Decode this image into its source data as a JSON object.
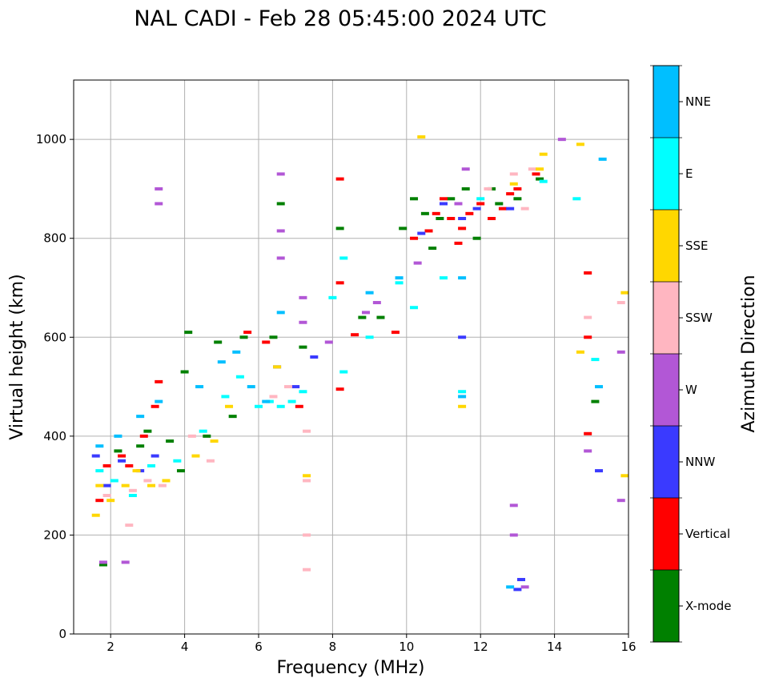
{
  "chart_data": {
    "type": "scatter",
    "title": "NAL CADI - Feb 28 05:45:00 2024 UTC",
    "xlabel": "Frequency (MHz)",
    "ylabel": "Virtual height (km)",
    "xlim": [
      1,
      16
    ],
    "ylim": [
      0,
      1120
    ],
    "xticks": [
      2,
      4,
      6,
      8,
      10,
      12,
      14,
      16
    ],
    "yticks": [
      0,
      200,
      400,
      600,
      800,
      1000
    ],
    "grid": true,
    "colorbar": {
      "label": "Azimuth Direction",
      "placement": "right",
      "categories": [
        {
          "name": "X-mode",
          "color": "#008000"
        },
        {
          "name": "Vertical",
          "color": "#ff0000"
        },
        {
          "name": "NNW",
          "color": "#3a3aff"
        },
        {
          "name": "W",
          "color": "#b257d6"
        },
        {
          "name": "SSW",
          "color": "#ffb6c1"
        },
        {
          "name": "SSE",
          "color": "#ffd700"
        },
        {
          "name": "E",
          "color": "#00ffff"
        },
        {
          "name": "NNE",
          "color": "#00bfff"
        }
      ]
    },
    "series": [
      {
        "name": "X-mode",
        "points": [
          [
            1.8,
            140
          ],
          [
            2.2,
            370
          ],
          [
            2.8,
            380
          ],
          [
            3.0,
            410
          ],
          [
            3.6,
            390
          ],
          [
            3.9,
            330
          ],
          [
            4.0,
            530
          ],
          [
            4.1,
            610
          ],
          [
            4.6,
            400
          ],
          [
            4.9,
            590
          ],
          [
            5.3,
            440
          ],
          [
            5.6,
            600
          ],
          [
            6.4,
            600
          ],
          [
            6.6,
            870
          ],
          [
            7.2,
            580
          ],
          [
            8.2,
            820
          ],
          [
            8.8,
            640
          ],
          [
            9.3,
            640
          ],
          [
            9.9,
            820
          ],
          [
            10.2,
            880
          ],
          [
            10.5,
            850
          ],
          [
            10.7,
            780
          ],
          [
            10.9,
            840
          ],
          [
            11.2,
            880
          ],
          [
            11.6,
            900
          ],
          [
            11.9,
            800
          ],
          [
            12.3,
            900
          ],
          [
            12.5,
            870
          ],
          [
            13.0,
            880
          ],
          [
            13.6,
            920
          ],
          [
            15.1,
            470
          ]
        ]
      },
      {
        "name": "Vertical",
        "points": [
          [
            1.7,
            270
          ],
          [
            1.9,
            340
          ],
          [
            2.3,
            360
          ],
          [
            2.5,
            340
          ],
          [
            2.9,
            400
          ],
          [
            3.2,
            460
          ],
          [
            3.3,
            510
          ],
          [
            5.7,
            610
          ],
          [
            6.2,
            590
          ],
          [
            7.1,
            460
          ],
          [
            8.2,
            495
          ],
          [
            8.2,
            710
          ],
          [
            8.2,
            920
          ],
          [
            8.6,
            605
          ],
          [
            9.7,
            610
          ],
          [
            10.2,
            800
          ],
          [
            10.6,
            815
          ],
          [
            10.8,
            850
          ],
          [
            11.0,
            880
          ],
          [
            11.2,
            840
          ],
          [
            11.4,
            790
          ],
          [
            11.5,
            820
          ],
          [
            11.7,
            850
          ],
          [
            12.0,
            870
          ],
          [
            12.3,
            840
          ],
          [
            12.6,
            860
          ],
          [
            12.8,
            890
          ],
          [
            13.0,
            900
          ],
          [
            13.5,
            930
          ],
          [
            14.9,
            730
          ],
          [
            14.9,
            600
          ],
          [
            14.9,
            405
          ]
        ]
      },
      {
        "name": "NNW",
        "points": [
          [
            1.6,
            360
          ],
          [
            1.9,
            300
          ],
          [
            2.3,
            350
          ],
          [
            2.8,
            330
          ],
          [
            3.2,
            360
          ],
          [
            6.5,
            540
          ],
          [
            7.0,
            500
          ],
          [
            7.5,
            560
          ],
          [
            10.4,
            810
          ],
          [
            11.0,
            870
          ],
          [
            11.5,
            600
          ],
          [
            11.5,
            840
          ],
          [
            11.9,
            860
          ],
          [
            12.8,
            860
          ],
          [
            13.0,
            90
          ],
          [
            13.1,
            110
          ],
          [
            15.2,
            330
          ]
        ]
      },
      {
        "name": "W",
        "points": [
          [
            1.8,
            145
          ],
          [
            2.4,
            145
          ],
          [
            3.3,
            870
          ],
          [
            3.3,
            900
          ],
          [
            6.6,
            760
          ],
          [
            6.6,
            815
          ],
          [
            6.6,
            930
          ],
          [
            7.2,
            630
          ],
          [
            7.2,
            680
          ],
          [
            7.9,
            590
          ],
          [
            8.9,
            650
          ],
          [
            9.2,
            670
          ],
          [
            10.3,
            750
          ],
          [
            11.4,
            870
          ],
          [
            11.6,
            940
          ],
          [
            12.9,
            200
          ],
          [
            12.9,
            260
          ],
          [
            13.2,
            95
          ],
          [
            14.2,
            1000
          ],
          [
            14.9,
            370
          ],
          [
            15.8,
            270
          ],
          [
            15.8,
            570
          ]
        ]
      },
      {
        "name": "SSW",
        "points": [
          [
            1.9,
            280
          ],
          [
            2.5,
            220
          ],
          [
            2.6,
            290
          ],
          [
            3.0,
            310
          ],
          [
            3.4,
            300
          ],
          [
            4.2,
            400
          ],
          [
            4.7,
            350
          ],
          [
            6.4,
            480
          ],
          [
            6.8,
            500
          ],
          [
            7.3,
            130
          ],
          [
            7.3,
            200
          ],
          [
            7.3,
            410
          ],
          [
            7.3,
            310
          ],
          [
            12.2,
            900
          ],
          [
            12.9,
            930
          ],
          [
            13.2,
            860
          ],
          [
            13.4,
            940
          ],
          [
            14.9,
            640
          ],
          [
            15.8,
            670
          ]
        ]
      },
      {
        "name": "SSE",
        "points": [
          [
            1.6,
            240
          ],
          [
            1.7,
            300
          ],
          [
            2.0,
            270
          ],
          [
            2.4,
            300
          ],
          [
            2.7,
            330
          ],
          [
            3.1,
            300
          ],
          [
            3.5,
            310
          ],
          [
            4.3,
            360
          ],
          [
            4.8,
            390
          ],
          [
            5.2,
            460
          ],
          [
            6.5,
            540
          ],
          [
            7.3,
            320
          ],
          [
            10.4,
            1005
          ],
          [
            11.5,
            460
          ],
          [
            12.9,
            910
          ],
          [
            13.6,
            940
          ],
          [
            13.7,
            970
          ],
          [
            14.7,
            570
          ],
          [
            14.7,
            990
          ],
          [
            15.9,
            320
          ],
          [
            15.9,
            690
          ]
        ]
      },
      {
        "name": "E",
        "points": [
          [
            1.7,
            330
          ],
          [
            2.1,
            310
          ],
          [
            2.6,
            280
          ],
          [
            3.1,
            340
          ],
          [
            3.8,
            350
          ],
          [
            4.5,
            410
          ],
          [
            5.1,
            480
          ],
          [
            5.5,
            520
          ],
          [
            6.0,
            460
          ],
          [
            6.3,
            470
          ],
          [
            6.6,
            460
          ],
          [
            6.9,
            470
          ],
          [
            7.2,
            490
          ],
          [
            8.0,
            680
          ],
          [
            8.3,
            530
          ],
          [
            8.3,
            760
          ],
          [
            9.0,
            600
          ],
          [
            9.8,
            710
          ],
          [
            10.2,
            660
          ],
          [
            11.0,
            720
          ],
          [
            11.5,
            490
          ],
          [
            12.0,
            880
          ],
          [
            13.7,
            915
          ],
          [
            14.6,
            880
          ],
          [
            15.1,
            555
          ]
        ]
      },
      {
        "name": "NNE",
        "points": [
          [
            1.7,
            380
          ],
          [
            2.2,
            400
          ],
          [
            2.8,
            440
          ],
          [
            3.3,
            470
          ],
          [
            4.4,
            500
          ],
          [
            5.0,
            550
          ],
          [
            5.4,
            570
          ],
          [
            5.8,
            500
          ],
          [
            6.2,
            470
          ],
          [
            6.6,
            650
          ],
          [
            9.0,
            690
          ],
          [
            9.8,
            720
          ],
          [
            11.5,
            480
          ],
          [
            11.5,
            720
          ],
          [
            12.8,
            95
          ],
          [
            15.2,
            500
          ],
          [
            15.3,
            960
          ]
        ]
      }
    ]
  }
}
